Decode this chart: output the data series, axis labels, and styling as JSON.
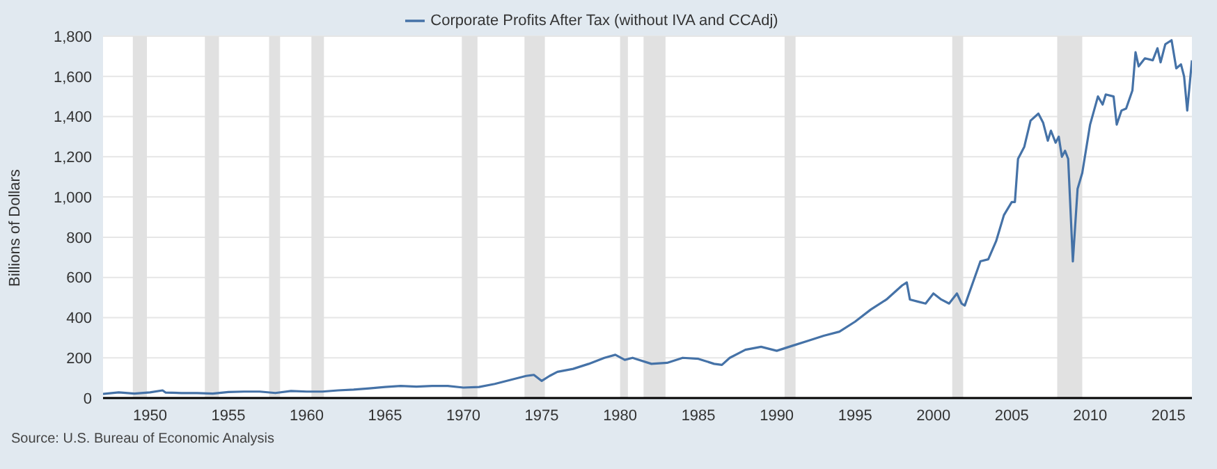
{
  "chart_data": {
    "type": "line",
    "ylabel": "Billions of Dollars",
    "annotations": [
      "Source: U.S. Bureau of Economic Analysis"
    ],
    "x": [
      1947,
      1948,
      1949,
      1950,
      1950.8,
      1951,
      1952,
      1953,
      1954,
      1955,
      1956,
      1957,
      1958,
      1959,
      1960,
      1961,
      1962,
      1963,
      1964,
      1965,
      1966,
      1967,
      1968,
      1969,
      1970,
      1971,
      1972,
      1973,
      1974,
      1974.5,
      1975,
      1975.5,
      1976,
      1977,
      1978,
      1979,
      1979.7,
      1980.3,
      1980.8,
      1981,
      1982,
      1983,
      1984,
      1985,
      1986,
      1986.5,
      1987,
      1988,
      1989,
      1990,
      1991,
      1992,
      1993,
      1994,
      1995,
      1996,
      1997,
      1998,
      1998.3,
      1998.5,
      1999,
      1999.5,
      2000,
      2000.5,
      2001,
      2001.5,
      2001.8,
      2002,
      2003,
      2003.5,
      2004,
      2004.5,
      2005,
      2005.2,
      2005.4,
      2005.8,
      2006.2,
      2006.7,
      2007,
      2007.3,
      2007.5,
      2007.8,
      2008,
      2008.2,
      2008.4,
      2008.6,
      2008.9,
      2009.2,
      2009.5,
      2010,
      2010.5,
      2010.8,
      2011,
      2011.5,
      2011.7,
      2012,
      2012.3,
      2012.7,
      2012.9,
      2013.1,
      2013.5,
      2014,
      2014.3,
      2014.5,
      2014.8,
      2015.2,
      2015.5,
      2015.8,
      2016,
      2016.2,
      2016.5
    ],
    "series": [
      {
        "name": "Corporate Profits After Tax (without IVA and CCAdj)",
        "color": "#4572a7",
        "values": [
          20,
          28,
          22,
          28,
          38,
          27,
          25,
          25,
          22,
          30,
          32,
          32,
          25,
          35,
          32,
          32,
          38,
          42,
          48,
          55,
          60,
          57,
          60,
          60,
          52,
          55,
          70,
          90,
          110,
          115,
          85,
          110,
          130,
          145,
          170,
          200,
          215,
          190,
          200,
          195,
          170,
          175,
          200,
          195,
          170,
          165,
          200,
          240,
          255,
          235,
          260,
          285,
          310,
          330,
          380,
          440,
          490,
          560,
          575,
          490,
          480,
          470,
          520,
          490,
          470,
          520,
          470,
          460,
          680,
          690,
          780,
          910,
          975,
          975,
          1190,
          1250,
          1380,
          1415,
          1370,
          1280,
          1330,
          1270,
          1300,
          1200,
          1230,
          1190,
          680,
          1040,
          1120,
          1360,
          1500,
          1460,
          1510,
          1500,
          1360,
          1430,
          1440,
          1530,
          1720,
          1650,
          1690,
          1680,
          1740,
          1670,
          1760,
          1780,
          1640,
          1660,
          1600,
          1430,
          1680
        ]
      }
    ],
    "xlim": [
      1947,
      2016.5
    ],
    "xticks": [
      1950,
      1955,
      1960,
      1965,
      1970,
      1975,
      1980,
      1985,
      1990,
      1995,
      2000,
      2005,
      2010,
      2015
    ],
    "ylim": [
      0,
      1800
    ],
    "yticks": [
      0,
      200,
      400,
      600,
      800,
      {
        "value": 1000,
        "label": "1,000"
      },
      {
        "value": 1200,
        "label": "1,200"
      },
      {
        "value": 1400,
        "label": "1,400"
      },
      {
        "value": 1600,
        "label": "1,600"
      },
      {
        "value": 1800,
        "label": "1,800"
      }
    ],
    "bands": [
      {
        "axis": "x",
        "from": 1948.9,
        "to": 1949.8,
        "color": "#e1e1e1"
      },
      {
        "axis": "x",
        "from": 1953.5,
        "to": 1954.4,
        "color": "#e1e1e1"
      },
      {
        "axis": "x",
        "from": 1957.6,
        "to": 1958.3,
        "color": "#e1e1e1"
      },
      {
        "axis": "x",
        "from": 1960.3,
        "to": 1961.1,
        "color": "#e1e1e1"
      },
      {
        "axis": "x",
        "from": 1969.9,
        "to": 1970.9,
        "color": "#e1e1e1"
      },
      {
        "axis": "x",
        "from": 1973.9,
        "to": 1975.2,
        "color": "#e1e1e1"
      },
      {
        "axis": "x",
        "from": 1980.0,
        "to": 1980.5,
        "color": "#e1e1e1"
      },
      {
        "axis": "x",
        "from": 1981.5,
        "to": 1982.9,
        "color": "#e1e1e1"
      },
      {
        "axis": "x",
        "from": 1990.5,
        "to": 1991.2,
        "color": "#e1e1e1"
      },
      {
        "axis": "x",
        "from": 2001.2,
        "to": 2001.9,
        "color": "#e1e1e1"
      },
      {
        "axis": "x",
        "from": 2007.9,
        "to": 2009.5,
        "color": "#e1e1e1"
      }
    ],
    "grid": "y",
    "legend": "top",
    "marker": "none",
    "line_style": "solid"
  }
}
